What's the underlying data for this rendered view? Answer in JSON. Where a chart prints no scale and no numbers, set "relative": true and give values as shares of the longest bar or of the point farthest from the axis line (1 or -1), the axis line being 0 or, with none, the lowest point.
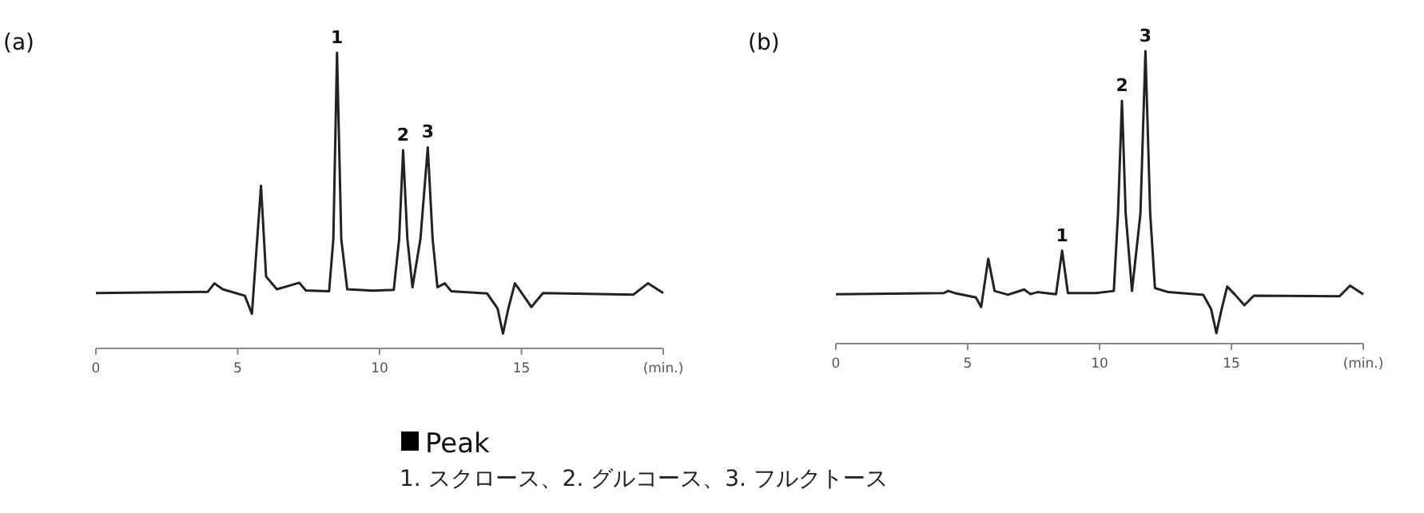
{
  "chart_data": [
    {
      "type": "line",
      "title": "(a)",
      "relative": true,
      "color": "#222222",
      "xlim": [
        0,
        20
      ],
      "xticks": [
        0,
        5,
        10,
        15,
        {
          "value": 20,
          "label": "(min.)"
        }
      ],
      "x": [
        0,
        3.94,
        4.18,
        4.47,
        5.25,
        5.5,
        5.82,
        6.0,
        6.38,
        7.17,
        7.4,
        8.22,
        8.37,
        8.5,
        8.65,
        8.86,
        9.76,
        10.5,
        10.69,
        10.83,
        10.98,
        11.16,
        11.44,
        11.7,
        11.87,
        12.04,
        12.3,
        12.53,
        13.79,
        14.16,
        14.35,
        14.54,
        14.77,
        15.0,
        15.35,
        15.76,
        18.95,
        19.46,
        20
      ],
      "values": [
        0.187,
        0.191,
        0.22,
        0.2,
        0.178,
        0.117,
        0.55,
        0.243,
        0.2,
        0.222,
        0.196,
        0.193,
        0.369,
        1.0,
        0.369,
        0.2,
        0.195,
        0.198,
        0.37,
        0.67,
        0.37,
        0.207,
        0.37,
        0.68,
        0.37,
        0.207,
        0.22,
        0.193,
        0.186,
        0.135,
        0.05,
        0.135,
        0.22,
        0.189,
        0.14,
        0.187,
        0.182,
        0.22,
        0.187
      ],
      "annotations": [
        {
          "text": "1",
          "x": 8.5,
          "y": 1.0
        },
        {
          "text": "2",
          "x": 10.83,
          "y": 0.67
        },
        {
          "text": "3",
          "x": 11.7,
          "y": 0.68
        }
      ]
    },
    {
      "type": "line",
      "title": "(b)",
      "relative": true,
      "color": "#222222",
      "xlim": [
        0,
        20
      ],
      "xticks": [
        0,
        5,
        10,
        15,
        {
          "value": 20,
          "label": "(min.)"
        }
      ],
      "x": [
        0,
        4.1,
        4.26,
        4.5,
        5.31,
        5.51,
        5.78,
        6.02,
        6.53,
        7.14,
        7.38,
        7.64,
        8.35,
        8.58,
        8.8,
        9.87,
        10.54,
        10.7,
        10.85,
        10.99,
        11.23,
        11.55,
        11.74,
        11.92,
        12.1,
        12.61,
        13.93,
        14.23,
        14.43,
        14.63,
        14.84,
        15.14,
        15.49,
        15.85,
        19.1,
        19.5,
        20
      ],
      "values": [
        0.169,
        0.173,
        0.18,
        0.173,
        0.158,
        0.125,
        0.29,
        0.18,
        0.167,
        0.185,
        0.169,
        0.176,
        0.169,
        0.318,
        0.173,
        0.173,
        0.18,
        0.445,
        0.83,
        0.445,
        0.18,
        0.445,
        1.0,
        0.445,
        0.19,
        0.176,
        0.167,
        0.118,
        0.036,
        0.118,
        0.195,
        0.167,
        0.131,
        0.164,
        0.162,
        0.198,
        0.169
      ],
      "annotations": [
        {
          "text": "1",
          "x": 8.58,
          "y": 0.318
        },
        {
          "text": "2",
          "x": 10.85,
          "y": 0.83
        },
        {
          "text": "3",
          "x": 11.74,
          "y": 1.0
        }
      ]
    },
    {
      "type": "other",
      "title": "Peak",
      "annotations": [
        "1.  スクロース、2.  グルコース、3.  フルクトース"
      ]
    }
  ]
}
